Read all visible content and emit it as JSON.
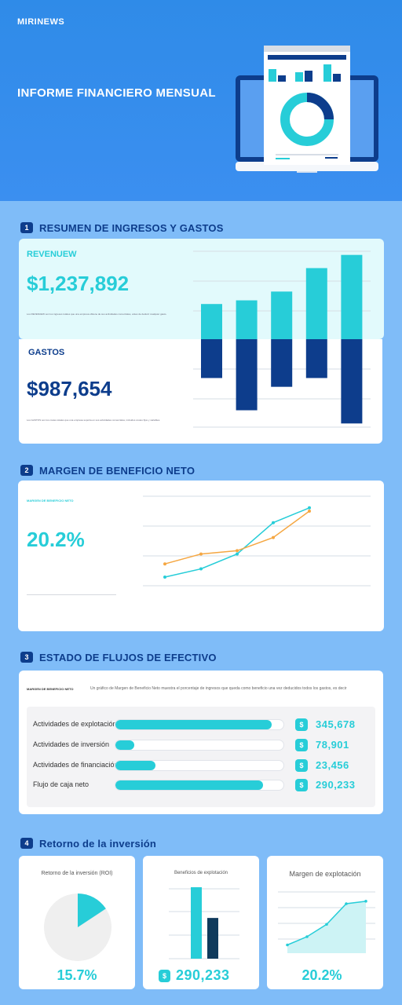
{
  "header": {
    "brand": "MIRINEWS",
    "title": "INFORME FINANCIERO MENSUAL"
  },
  "sections": {
    "s1": {
      "num": "1",
      "title": "RESUMEN DE INGRESOS Y GASTOS"
    },
    "s2": {
      "num": "2",
      "title": "MARGEN DE BENEFICIO NETO"
    },
    "s3": {
      "num": "3",
      "title": "ESTADO DE FLUJOS DE EFECTIVO"
    },
    "s4": {
      "num": "4",
      "title": "Retorno de la inversión"
    }
  },
  "revenue": {
    "label": "REVENUEW",
    "value": "$1,237,892",
    "desc": "Los REVENUEW son los ingresos totales que una empresa obtiene de sus actividades comerciales, antes de deducir cualquier gasto."
  },
  "expenses": {
    "label": "GASTOS",
    "value": "$987,654",
    "desc": "Los GASTOS son los costes totales que una empresa soporta en sus actividades comerciales, incluidos costes fijos y variables."
  },
  "margin": {
    "label": "MARGEN DE BENEFICIO NETO",
    "value": "20.2%"
  },
  "cashflow": {
    "caption_label": "MARGEN DE BENEFICIO NETO",
    "caption_text": "Un gráfico de Margen de Beneficio Neto muestra el porcentaje de ingresos que queda como beneficio una vez deducidos todos los gastos, es decir",
    "currency_icon": "$",
    "rows": [
      {
        "label": "Actividades de explotación",
        "value": "345,678",
        "fill": 0.93
      },
      {
        "label": "Actividades de inversión",
        "value": "78,901",
        "fill": 0.11
      },
      {
        "label": "Actividades de financiación",
        "value": "23,456",
        "fill": 0.24
      },
      {
        "label": "Flujo de caja neto",
        "value": "290,233",
        "fill": 0.88
      }
    ]
  },
  "roi": {
    "card1": {
      "title": "Retorno de la inversión (ROI)",
      "value": "15.7%"
    },
    "card2": {
      "title": "Beneficios de explotación",
      "value": "290,233",
      "currency_icon": "$"
    },
    "card3": {
      "title": "Margen de explotación",
      "value": "20.2%"
    }
  },
  "colors": {
    "accent": "#27cdd8",
    "navy": "#0d3d8c",
    "orange": "#f5a742",
    "hero": "#3b8ff0"
  },
  "chart_data": [
    {
      "type": "bar",
      "name": "ingresos-gastos",
      "series": [
        {
          "values": [
            4.8,
            5.3,
            6.5,
            9.7,
            11.5
          ]
        },
        {
          "values": [
            -5.3,
            -9.7,
            -6.5,
            -5.3,
            -11.5
          ]
        }
      ],
      "ylim": [
        -12,
        12
      ],
      "grid": true
    },
    {
      "type": "line",
      "name": "margen",
      "x": [
        1,
        2,
        3,
        4,
        5,
        6
      ],
      "series": [
        {
          "color": "#27cdd8",
          "values": [
            10,
            15,
            24,
            43,
            52,
            null
          ]
        },
        {
          "color": "#f5a742",
          "values": [
            18,
            24,
            26,
            34,
            50,
            null
          ]
        }
      ],
      "grid": true
    },
    {
      "type": "pie",
      "name": "roi",
      "values": [
        15.7,
        84.3
      ]
    },
    {
      "type": "bar",
      "name": "beneficios",
      "values": [
        100,
        57
      ],
      "ylim": [
        0,
        100
      ],
      "grid": true
    },
    {
      "type": "area",
      "name": "margen-explotacion",
      "values": [
        10,
        20,
        35,
        60,
        63
      ],
      "ylim": [
        0,
        80
      ],
      "grid": true
    }
  ]
}
